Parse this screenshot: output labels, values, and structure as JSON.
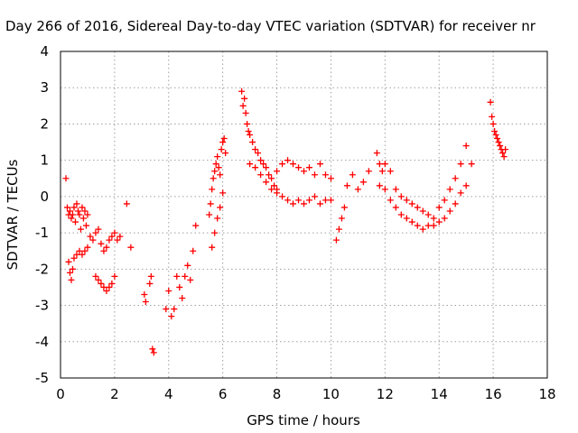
{
  "chart_data": {
    "type": "scatter",
    "title": "Day 266 of 2016, Sidereal Day-to-day VTEC variation (SDTVAR) for receiver nr",
    "xlabel": "GPS time / hours",
    "ylabel": "SDTVAR / TECUs",
    "xlim": [
      0,
      18
    ],
    "ylim": [
      -5,
      4
    ],
    "xticks": [
      0,
      2,
      4,
      6,
      8,
      10,
      12,
      14,
      16,
      18
    ],
    "yticks": [
      -5,
      -4,
      -3,
      -2,
      -1,
      0,
      1,
      2,
      3,
      4
    ],
    "grid": true,
    "marker": "+",
    "color": "#ff0000",
    "series": [
      {
        "name": "SDTVAR",
        "x": [
          0.2,
          0.25,
          0.3,
          0.35,
          0.4,
          0.45,
          0.5,
          0.55,
          0.6,
          0.65,
          0.7,
          0.75,
          0.8,
          0.85,
          0.9,
          0.95,
          1.0,
          0.3,
          0.35,
          0.4,
          0.45,
          0.5,
          0.6,
          0.7,
          0.8,
          0.9,
          1.0,
          1.1,
          1.2,
          1.3,
          1.4,
          1.5,
          1.6,
          1.7,
          1.8,
          1.9,
          2.0,
          2.1,
          2.2,
          1.3,
          1.4,
          1.5,
          1.6,
          1.7,
          1.8,
          1.9,
          2.0,
          2.45,
          2.6,
          3.1,
          3.15,
          3.3,
          3.35,
          3.4,
          3.45,
          3.9,
          4.0,
          4.1,
          4.2,
          4.3,
          4.4,
          4.5,
          4.6,
          4.7,
          4.8,
          4.9,
          5.0,
          5.5,
          5.55,
          5.6,
          5.65,
          5.7,
          5.75,
          5.8,
          5.85,
          5.9,
          5.95,
          6.0,
          6.05,
          6.1,
          5.6,
          5.7,
          5.8,
          5.9,
          6.0,
          6.7,
          6.75,
          6.8,
          6.85,
          6.9,
          6.95,
          7.0,
          7.1,
          7.2,
          7.3,
          7.4,
          7.5,
          7.6,
          7.7,
          7.8,
          7.9,
          8.0,
          7.0,
          7.2,
          7.4,
          7.6,
          7.8,
          8.0,
          8.2,
          8.4,
          8.6,
          8.8,
          9.0,
          9.2,
          9.4,
          9.6,
          9.8,
          10.0,
          8.0,
          8.2,
          8.4,
          8.6,
          8.8,
          9.0,
          9.2,
          9.4,
          9.6,
          9.8,
          10.0,
          10.2,
          10.3,
          10.4,
          10.5,
          10.6,
          10.8,
          11.0,
          11.2,
          11.4,
          11.7,
          11.8,
          11.9,
          12.0,
          12.2,
          12.4,
          12.6,
          12.8,
          13.0,
          13.2,
          13.4,
          13.6,
          13.8,
          14.0,
          14.2,
          14.4,
          14.6,
          14.8,
          15.0,
          11.8,
          12.0,
          12.2,
          12.4,
          12.6,
          12.8,
          13.0,
          13.2,
          13.4,
          13.6,
          13.8,
          14.0,
          14.2,
          14.4,
          14.6,
          14.8,
          15.0,
          15.2,
          15.9,
          15.95,
          16.0,
          16.05,
          16.1,
          16.15,
          16.2,
          16.25,
          16.3,
          16.35,
          16.4,
          16.45
        ],
        "y": [
          0.5,
          -0.3,
          -0.5,
          -0.4,
          -0.6,
          -0.5,
          -0.3,
          -0.7,
          -0.2,
          -0.4,
          -0.5,
          -0.9,
          -0.3,
          -0.6,
          -0.4,
          -0.8,
          -0.5,
          -1.8,
          -2.1,
          -2.3,
          -2.0,
          -1.7,
          -1.6,
          -1.5,
          -1.6,
          -1.5,
          -1.4,
          -1.1,
          -1.2,
          -1.0,
          -0.9,
          -1.3,
          -1.5,
          -1.4,
          -1.2,
          -1.1,
          -1.0,
          -1.2,
          -1.1,
          -2.2,
          -2.3,
          -2.4,
          -2.5,
          -2.6,
          -2.5,
          -2.4,
          -2.2,
          -0.2,
          -1.4,
          -2.7,
          -2.9,
          -2.4,
          -2.2,
          -4.2,
          -4.3,
          -3.1,
          -2.6,
          -3.3,
          -3.1,
          -2.2,
          -2.5,
          -2.8,
          -2.2,
          -1.9,
          -2.3,
          -1.5,
          -0.8,
          -0.5,
          -0.2,
          0.2,
          0.5,
          0.7,
          0.9,
          1.1,
          0.8,
          0.6,
          1.3,
          1.5,
          1.6,
          1.2,
          -1.4,
          -1.0,
          -0.6,
          -0.3,
          0.1,
          2.9,
          2.5,
          2.7,
          2.3,
          2.0,
          1.8,
          1.7,
          1.5,
          1.3,
          1.2,
          1.0,
          0.9,
          0.8,
          0.6,
          0.5,
          0.3,
          0.2,
          0.9,
          0.8,
          0.6,
          0.4,
          0.2,
          0.1,
          0.0,
          -0.1,
          -0.2,
          -0.1,
          -0.2,
          -0.1,
          0.0,
          -0.2,
          -0.1,
          -0.1,
          0.7,
          0.9,
          1.0,
          0.9,
          0.8,
          0.7,
          0.8,
          0.6,
          0.9,
          0.6,
          0.5,
          -1.2,
          -0.9,
          -0.6,
          -0.3,
          0.3,
          0.6,
          0.2,
          0.4,
          0.7,
          1.2,
          0.9,
          0.7,
          0.9,
          0.7,
          0.2,
          0.0,
          -0.1,
          -0.2,
          -0.3,
          -0.4,
          -0.5,
          -0.6,
          -0.3,
          -0.1,
          0.2,
          0.5,
          0.9,
          1.4,
          0.3,
          0.2,
          -0.1,
          -0.3,
          -0.5,
          -0.6,
          -0.7,
          -0.8,
          -0.9,
          -0.8,
          -0.8,
          -0.7,
          -0.6,
          -0.4,
          -0.2,
          0.1,
          0.3,
          0.9,
          2.6,
          2.2,
          2.0,
          1.8,
          1.7,
          1.6,
          1.5,
          1.4,
          1.3,
          1.2,
          1.1,
          1.3
        ]
      }
    ]
  }
}
